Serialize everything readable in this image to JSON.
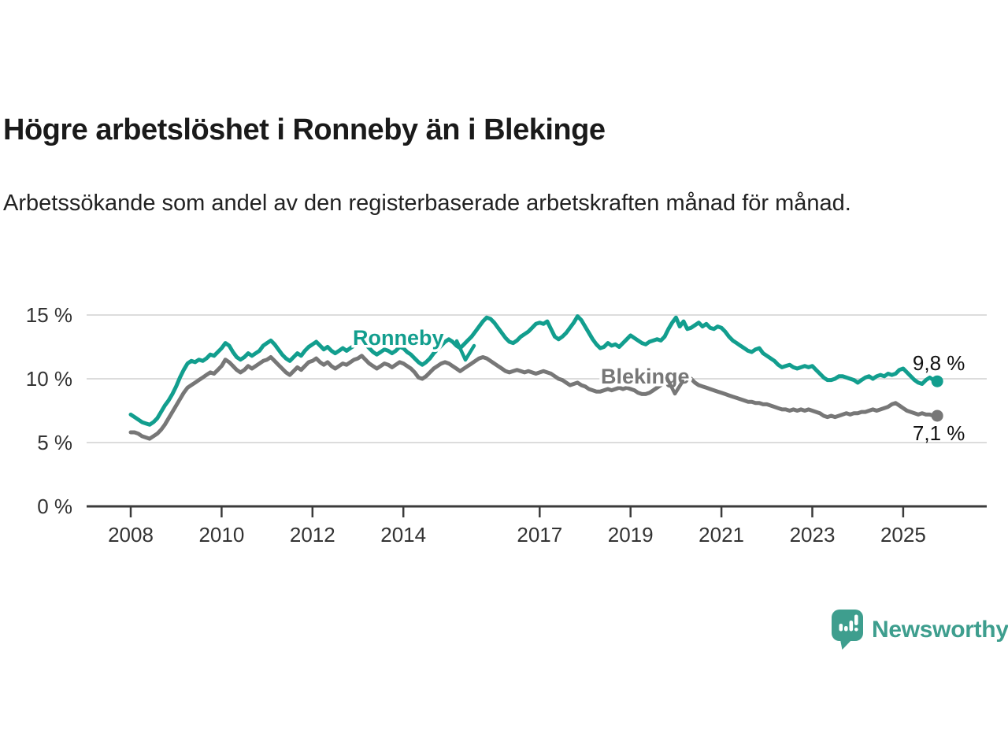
{
  "chart_data": {
    "type": "line",
    "title": "Högre arbetslöshet i Ronneby än i Blekinge",
    "subtitle": "Arbetssökande som andel av den registerbaserade arbetskraften månad för månad.",
    "x_start": {
      "year": 2008,
      "month": 1
    },
    "x_end": {
      "year": 2025,
      "month": 10
    },
    "points_per_year": 12,
    "x_tick_years": [
      "2008",
      "2010",
      "2012",
      "2014",
      "2017",
      "2019",
      "2021",
      "2023",
      "2025"
    ],
    "y_ticks": [
      {
        "value": 0,
        "label": "0 %"
      },
      {
        "value": 5,
        "label": "5 %"
      },
      {
        "value": 10,
        "label": "10 %"
      },
      {
        "value": 15,
        "label": "15 %"
      }
    ],
    "ylim": [
      0,
      16
    ],
    "grid": true,
    "legend_position": "inline-labels",
    "series": [
      {
        "name": "Blekinge",
        "color": "#777777",
        "end_label": "7,1 %",
        "end_value": 7.1,
        "values": [
          5.8,
          5.8,
          5.7,
          5.5,
          5.4,
          5.3,
          5.5,
          5.7,
          6.0,
          6.4,
          6.9,
          7.4,
          7.9,
          8.4,
          8.9,
          9.3,
          9.5,
          9.7,
          9.9,
          10.1,
          10.3,
          10.5,
          10.4,
          10.7,
          11.0,
          11.5,
          11.3,
          11.0,
          10.7,
          10.5,
          10.7,
          11.0,
          10.8,
          11.0,
          11.2,
          11.4,
          11.5,
          11.7,
          11.4,
          11.1,
          10.8,
          10.5,
          10.3,
          10.6,
          10.9,
          10.7,
          11.0,
          11.3,
          11.4,
          11.6,
          11.3,
          11.1,
          11.3,
          11.0,
          10.8,
          11.0,
          11.2,
          11.1,
          11.3,
          11.5,
          11.6,
          11.8,
          11.5,
          11.2,
          11.0,
          10.8,
          11.0,
          11.2,
          11.1,
          10.9,
          11.1,
          11.3,
          11.2,
          11.0,
          10.8,
          10.5,
          10.1,
          10.0,
          10.2,
          10.5,
          10.8,
          11.0,
          11.2,
          11.3,
          11.2,
          11.0,
          10.8,
          10.6,
          10.8,
          11.0,
          11.2,
          11.4,
          11.6,
          11.7,
          11.6,
          11.4,
          11.2,
          11.0,
          10.8,
          10.6,
          10.5,
          10.6,
          10.7,
          10.6,
          10.5,
          10.6,
          10.5,
          10.4,
          10.5,
          10.6,
          10.5,
          10.4,
          10.2,
          10.0,
          9.9,
          9.7,
          9.5,
          9.6,
          9.7,
          9.5,
          9.4,
          9.2,
          9.1,
          9.0,
          9.0,
          9.1,
          9.2,
          9.1,
          9.2,
          9.3,
          9.2,
          9.3,
          9.2,
          9.1,
          8.9,
          8.8,
          8.8,
          8.9,
          9.1,
          9.3,
          9.5,
          9.8,
          10.0,
          10.2,
          10.3,
          10.2,
          10.3,
          10.2,
          10.0,
          9.7,
          9.5,
          9.4,
          9.3,
          9.2,
          9.1,
          9.0,
          8.9,
          8.8,
          8.7,
          8.6,
          8.5,
          8.4,
          8.3,
          8.2,
          8.2,
          8.1,
          8.1,
          8.0,
          8.0,
          7.9,
          7.8,
          7.7,
          7.6,
          7.6,
          7.5,
          7.6,
          7.5,
          7.6,
          7.5,
          7.6,
          7.5,
          7.4,
          7.3,
          7.1,
          7.0,
          7.1,
          7.0,
          7.1,
          7.2,
          7.3,
          7.2,
          7.3,
          7.3,
          7.4,
          7.4,
          7.5,
          7.6,
          7.5,
          7.6,
          7.7,
          7.8,
          8.0,
          8.1,
          7.9,
          7.7,
          7.5,
          7.4,
          7.3,
          7.2,
          7.3,
          7.2,
          7.2,
          7.1,
          7.1
        ]
      },
      {
        "name": "Ronneby",
        "color": "#129e8e",
        "end_label": "9,8 %",
        "end_value": 9.8,
        "values": [
          7.2,
          7.0,
          6.8,
          6.6,
          6.5,
          6.4,
          6.6,
          6.9,
          7.4,
          7.9,
          8.3,
          8.8,
          9.4,
          10.1,
          10.7,
          11.2,
          11.4,
          11.3,
          11.5,
          11.4,
          11.6,
          11.9,
          11.8,
          12.1,
          12.4,
          12.8,
          12.6,
          12.1,
          11.7,
          11.5,
          11.7,
          12.0,
          11.8,
          12.0,
          12.2,
          12.6,
          12.8,
          13.0,
          12.7,
          12.3,
          11.9,
          11.6,
          11.4,
          11.7,
          12.0,
          11.8,
          12.2,
          12.5,
          12.7,
          12.9,
          12.6,
          12.3,
          12.5,
          12.2,
          12.0,
          12.2,
          12.4,
          12.2,
          12.4,
          12.6,
          12.8,
          13.0,
          12.7,
          12.4,
          12.1,
          11.9,
          12.1,
          12.3,
          12.2,
          12.0,
          12.2,
          12.5,
          12.4,
          12.1,
          11.9,
          11.6,
          11.3,
          11.1,
          11.3,
          11.6,
          12.0,
          12.3,
          12.6,
          12.9,
          13.1,
          12.9,
          12.6,
          12.4,
          12.7,
          13.0,
          13.3,
          13.7,
          14.1,
          14.5,
          14.8,
          14.7,
          14.4,
          14.0,
          13.6,
          13.2,
          12.9,
          12.8,
          13.0,
          13.3,
          13.5,
          13.7,
          14.0,
          14.3,
          14.4,
          14.3,
          14.5,
          13.9,
          13.3,
          13.1,
          13.3,
          13.6,
          14.0,
          14.4,
          14.9,
          14.6,
          14.1,
          13.6,
          13.1,
          12.7,
          12.4,
          12.5,
          12.8,
          12.6,
          12.7,
          12.5,
          12.8,
          13.1,
          13.4,
          13.2,
          13.0,
          12.8,
          12.7,
          12.9,
          13.0,
          13.1,
          13.0,
          13.3,
          13.9,
          14.4,
          14.8,
          14.1,
          14.5,
          13.9,
          14.0,
          14.2,
          14.4,
          14.1,
          14.3,
          14.0,
          13.9,
          14.1,
          14.0,
          13.7,
          13.3,
          13.0,
          12.8,
          12.6,
          12.4,
          12.2,
          12.1,
          12.3,
          12.4,
          12.0,
          11.8,
          11.6,
          11.4,
          11.1,
          10.9,
          11.0,
          11.1,
          10.9,
          10.8,
          10.9,
          11.0,
          10.9,
          11.0,
          10.7,
          10.4,
          10.1,
          9.9,
          9.9,
          10.0,
          10.2,
          10.2,
          10.1,
          10.0,
          9.9,
          9.7,
          9.9,
          10.1,
          10.2,
          10.0,
          10.2,
          10.3,
          10.2,
          10.4,
          10.3,
          10.4,
          10.7,
          10.8,
          10.5,
          10.2,
          9.9,
          9.7,
          9.6,
          9.9,
          10.1,
          9.9,
          9.8
        ]
      }
    ]
  },
  "footer": {
    "brand": "Newsworthy",
    "logo_color": "#3e9e8e"
  }
}
